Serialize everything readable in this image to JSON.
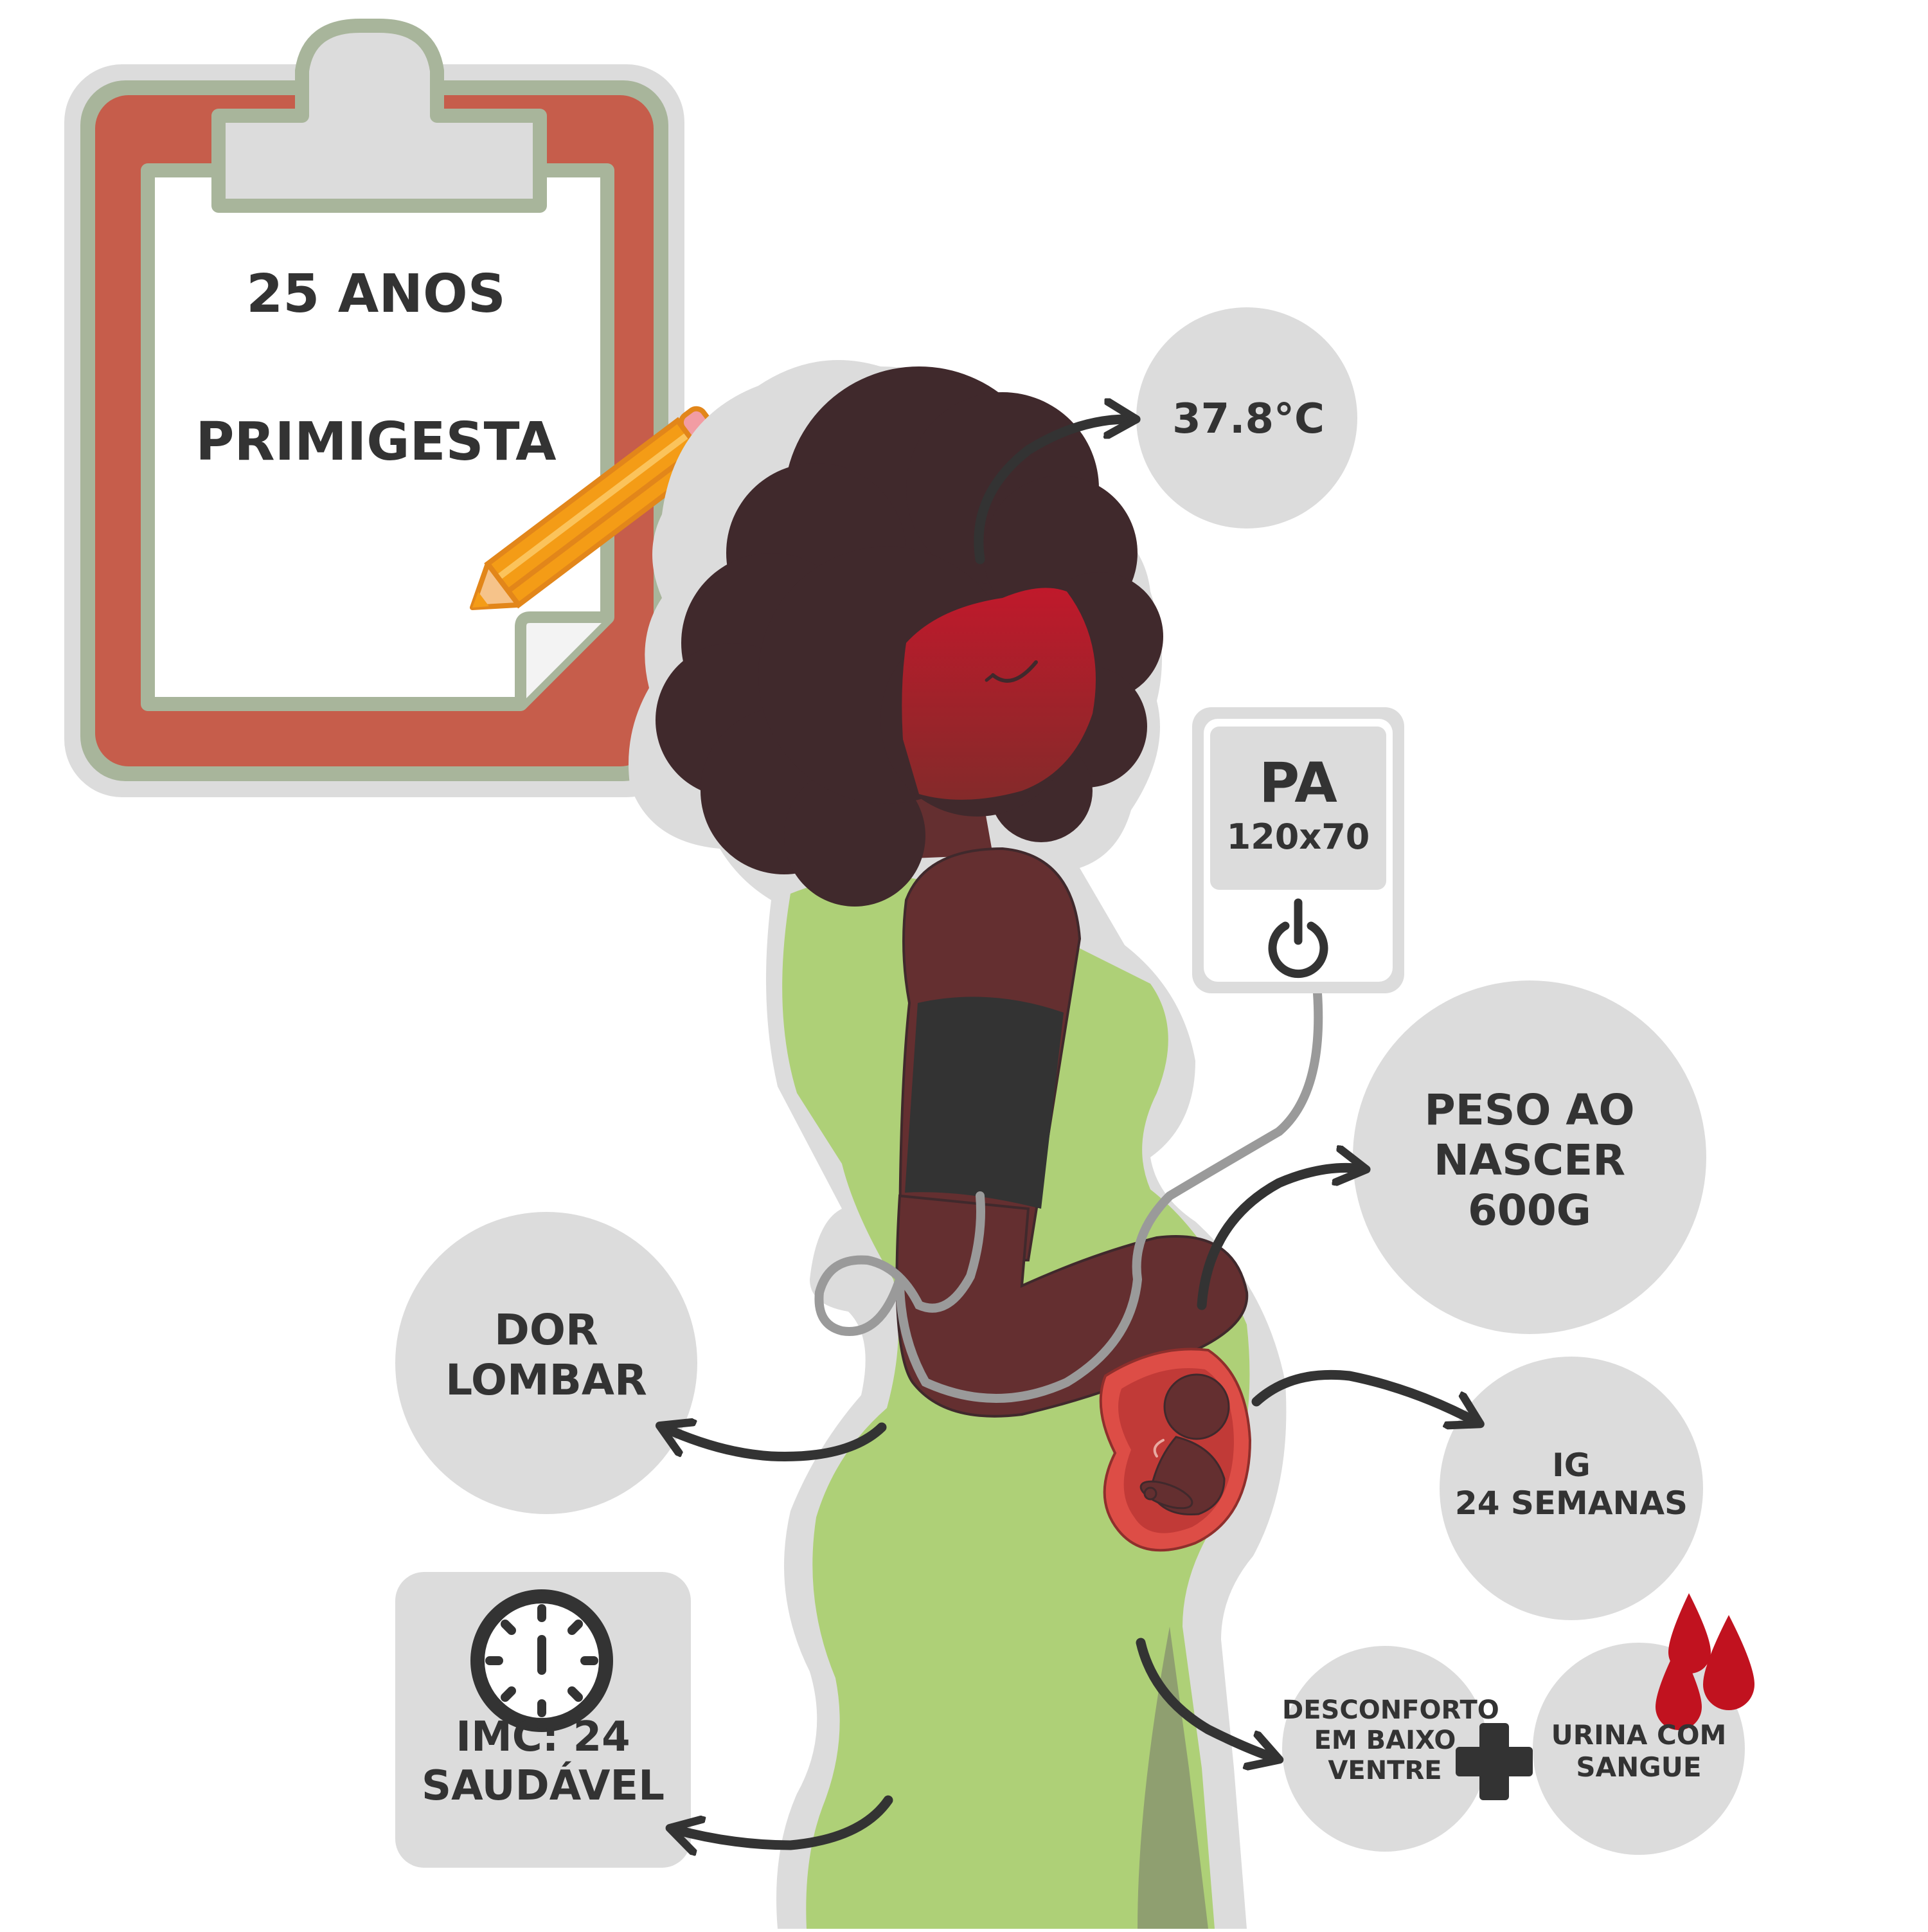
{
  "clipboard": {
    "line1": "25 ANOS",
    "line2": "PRIMIGESTA"
  },
  "temperature": {
    "value": "37.8°C"
  },
  "blood_pressure": {
    "title": "PA",
    "value": "120x70",
    "button_icon": "power-icon"
  },
  "birth_weight": {
    "lines": [
      "PESO AO",
      "NASCER",
      "600G"
    ]
  },
  "gestational_age": {
    "lines": [
      "IG",
      "24 SEMANAS"
    ]
  },
  "back_pain": {
    "lines": [
      "DOR",
      "LOMBAR"
    ]
  },
  "bmi": {
    "icon": "scale-icon",
    "lines": [
      "IMC: 24",
      "SAUDÁVEL"
    ]
  },
  "symptoms": {
    "lower_abdomen": [
      "DESCONFORTO",
      "EM BAIXO",
      "VENTRE"
    ],
    "plus_icon": "plus-icon",
    "urine": [
      "URINA COM",
      "SANGUE"
    ],
    "drops_icon": "blood-drops-icon"
  },
  "colors": {
    "clipboard_red": "#c65d4b",
    "clipboard_border": "#a8b59b",
    "bubble_grey": "#dcdcdc",
    "text_dark": "#333333",
    "dress_green": "#aed077",
    "skin": "#642f30",
    "hair": "#40292c",
    "blush_red": "#c0192b",
    "pencil_orange": "#f49c16",
    "blood_red": "#c1121f"
  }
}
